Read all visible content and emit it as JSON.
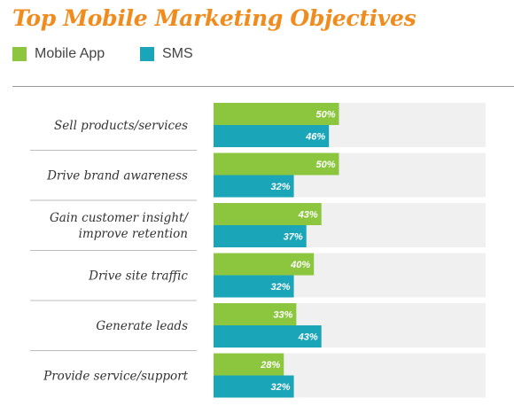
{
  "chart_data": {
    "type": "bar",
    "orientation": "horizontal",
    "title": "Top Mobile Marketing Objectives",
    "categories": [
      [
        "Sell products/services"
      ],
      [
        "Drive brand awareness"
      ],
      [
        "Gain customer insight/",
        "improve retention"
      ],
      [
        "Drive site traffic"
      ],
      [
        "Generate leads"
      ],
      [
        "Provide service/support"
      ]
    ],
    "series": [
      {
        "name": "Mobile App",
        "color": "#8cc63f",
        "values": [
          50,
          50,
          43,
          40,
          33,
          28
        ],
        "labels": [
          "50%",
          "50%",
          "43%",
          "40%",
          "33%",
          "28%"
        ]
      },
      {
        "name": "SMS",
        "color": "#1aa5b8",
        "values": [
          46,
          32,
          37,
          32,
          43,
          32
        ],
        "labels": [
          "46%",
          "32%",
          "37%",
          "32%",
          "43%",
          "32%"
        ]
      }
    ],
    "xlim": [
      0,
      100
    ],
    "grid": false,
    "legend_position": "top-left",
    "title_color": "#f08c1e",
    "track_color": "#f0f0f0",
    "separator_color": "#bdbdbd"
  }
}
